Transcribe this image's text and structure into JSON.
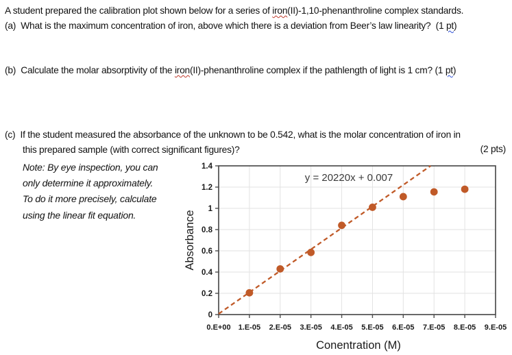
{
  "document": {
    "intro_segments": [
      {
        "text": "A student prepared the calibration plot shown below for a series of "
      },
      {
        "text": "iron",
        "flag": "red"
      },
      {
        "text": "(II)-1,10-phenanthroline complex standards."
      }
    ],
    "question_a_segments": [
      {
        "text": "(a)  What is the maximum concentration of iron, above which there is a deviation from Beer’s law linearity?  (1 "
      },
      {
        "text": "pt",
        "flag": "blue"
      },
      {
        "text": ")"
      }
    ],
    "question_b_segments": [
      {
        "text": "(b)  Calculate the molar absorptivity of the "
      },
      {
        "text": "iron",
        "flag": "red"
      },
      {
        "text": "(II)-phenanthroline complex if the pathlength of light is 1 cm? (1 "
      },
      {
        "text": "pt",
        "flag": "blue"
      },
      {
        "text": ")"
      }
    ],
    "question_c_line1": "(c)  If the student measured the absorbance of the unknown to be 0.542, what is the molar concentration of iron in",
    "question_c_line2": "this prepared sample (with correct significant figures)?",
    "question_c_points": "(2 pts)",
    "note_lines": [
      "Note: By eye inspection, you can",
      "only determine it approximately.",
      "To do it more precisely, calculate",
      "using the linear fit equation."
    ]
  },
  "chart_data": {
    "type": "scatter",
    "title": "",
    "xlabel": "Conentration (M)",
    "ylabel": "Absorbance",
    "xlim": [
      0,
      9e-05
    ],
    "ylim": [
      0,
      1.4
    ],
    "grid": true,
    "x": [
      1e-05,
      2e-05,
      3e-05,
      4e-05,
      5e-05,
      6e-05,
      7e-05,
      8e-05
    ],
    "y": [
      0.205,
      0.43,
      0.585,
      0.84,
      1.01,
      1.11,
      1.155,
      1.18
    ],
    "x_tick_values": [
      0,
      1e-05,
      2e-05,
      3e-05,
      4e-05,
      5e-05,
      6e-05,
      7e-05,
      8e-05,
      9e-05
    ],
    "x_tick_labels": [
      "0.E+00",
      "1.E-05",
      "2.E-05",
      "3.E-05",
      "4.E-05",
      "5.E-05",
      "6.E-05",
      "7.E-05",
      "8.E-05",
      "9.E-05"
    ],
    "y_tick_values": [
      0,
      0.2,
      0.4,
      0.6,
      0.8,
      1,
      1.2,
      1.4
    ],
    "y_tick_labels": [
      "0",
      "0.2",
      "0.4",
      "0.6",
      "0.8",
      "1",
      "1.2",
      "1.4"
    ],
    "equation_label": "y = 20220x + 0.007",
    "trendline": {
      "slope": 20220,
      "intercept": 0.007,
      "style": "dashed"
    },
    "legend": "none",
    "colors": {
      "marker": "#c05a28",
      "trendline": "#c05a28",
      "gridline": "#e2e2e2",
      "axis": "#4d4d4d",
      "tick_text": "#1a1a1a",
      "equation_text": "#3a3a3a"
    }
  }
}
